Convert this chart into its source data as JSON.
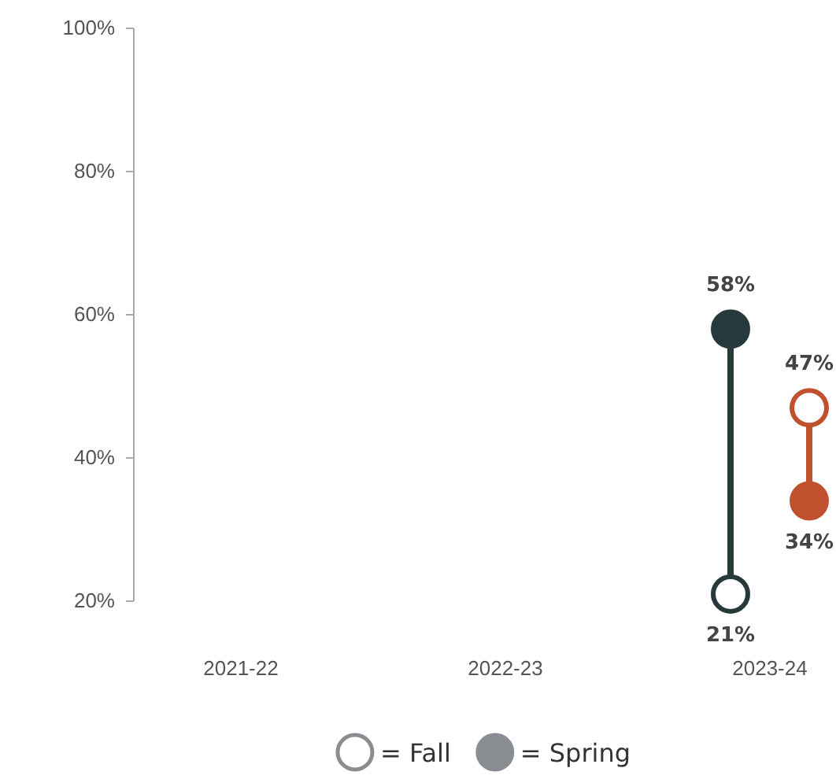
{
  "chart_data": {
    "type": "scatter",
    "categories": [
      "2021-22",
      "2022-23",
      "2023-24"
    ],
    "series": [
      {
        "color": "#263a3c",
        "values": [
          null,
          null,
          21
        ],
        "value_labels": [
          null,
          null,
          "21%"
        ]
      },
      {
        "color": "#263a3c",
        "values": [
          null,
          null,
          58
        ],
        "value_labels": [
          null,
          null,
          "58%"
        ]
      },
      {
        "color": "#c0502e",
        "values": [
          null,
          null,
          47
        ],
        "value_labels": [
          null,
          null,
          "47%"
        ]
      },
      {
        "color": "#c0502e",
        "values": [
          null,
          null,
          34
        ],
        "value_labels": [
          null,
          null,
          "34%"
        ]
      }
    ],
    "ylim": [
      20,
      100
    ],
    "yticks": [
      {
        "value": 20,
        "label": "20%"
      },
      {
        "value": 40,
        "label": "40%"
      },
      {
        "value": 60,
        "label": "60%"
      },
      {
        "value": 80,
        "label": "80%"
      },
      {
        "value": 100,
        "label": "100%"
      }
    ],
    "marker": "circle",
    "grid": false,
    "annotations": [
      "= Fall",
      "= Spring"
    ]
  }
}
